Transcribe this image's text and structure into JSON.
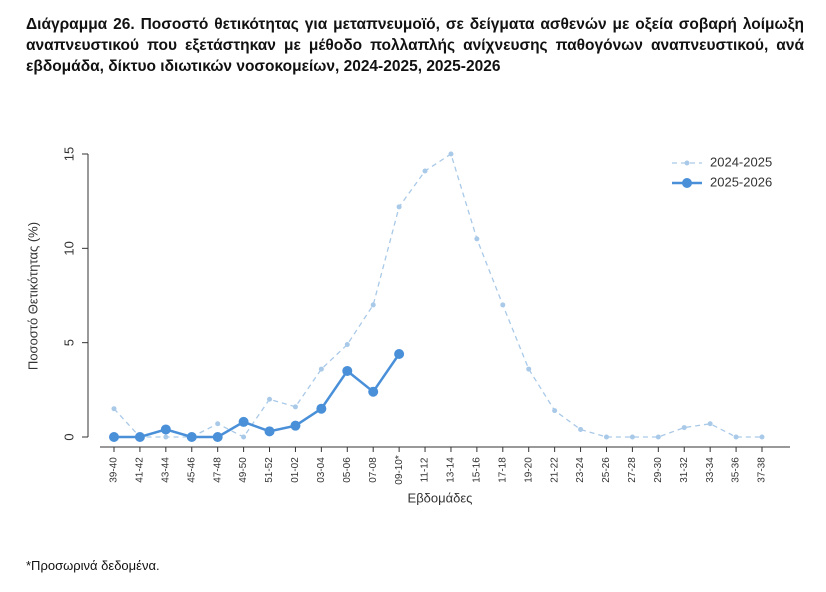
{
  "chart_data": {
    "type": "line",
    "title": "Διάγραμμα 26.  Ποσοστό θετικότητας για μεταπνευμοϊό, σε δείγματα ασθενών με οξεία σοβαρή λοίμωξη αναπνευστικού που εξετάστηκαν με μέθοδο πολλαπλής ανίχνευσης παθογόνων αναπνευστικού, ανά εβδομάδα, δίκτυο ιδιωτικών νοσοκομείων, 2024-2025, 2025-2026",
    "x_label": "Εβδομάδες",
    "y_label": "Ποσοστό Θετικότητας (%)",
    "categories": [
      "39-40",
      "41-42",
      "43-44",
      "45-46",
      "47-48",
      "49-50",
      "51-52",
      "01-02",
      "03-04",
      "05-06",
      "07-08",
      "09-10*",
      "11-12",
      "13-14",
      "15-16",
      "17-18",
      "19-20",
      "21-22",
      "23-24",
      "25-26",
      "27-28",
      "29-30",
      "31-32",
      "33-34",
      "35-36",
      "37-38"
    ],
    "series": [
      {
        "name": "2024-2025",
        "color": "#a9c9e8",
        "values": [
          1.5,
          0,
          0,
          0,
          0.7,
          0,
          2.0,
          1.6,
          3.6,
          4.9,
          7.0,
          12.2,
          14.1,
          15.0,
          10.5,
          7.0,
          3.6,
          1.4,
          0.4,
          0,
          0,
          0,
          0.5,
          0.7,
          0,
          0
        ]
      },
      {
        "name": "2025-2026",
        "color": "#4a90d9",
        "values": [
          0,
          0,
          0.4,
          0,
          0,
          0.8,
          0.3,
          0.6,
          1.5,
          3.5,
          2.4,
          4.4,
          null,
          null,
          null,
          null,
          null,
          null,
          null,
          null,
          null,
          null,
          null,
          null,
          null,
          null
        ]
      }
    ],
    "ylim": [
      0,
      15
    ],
    "yticks": [
      0,
      5,
      10,
      15
    ],
    "legend": "upper right",
    "footnote": "*Προσωρινά δεδομένα."
  }
}
